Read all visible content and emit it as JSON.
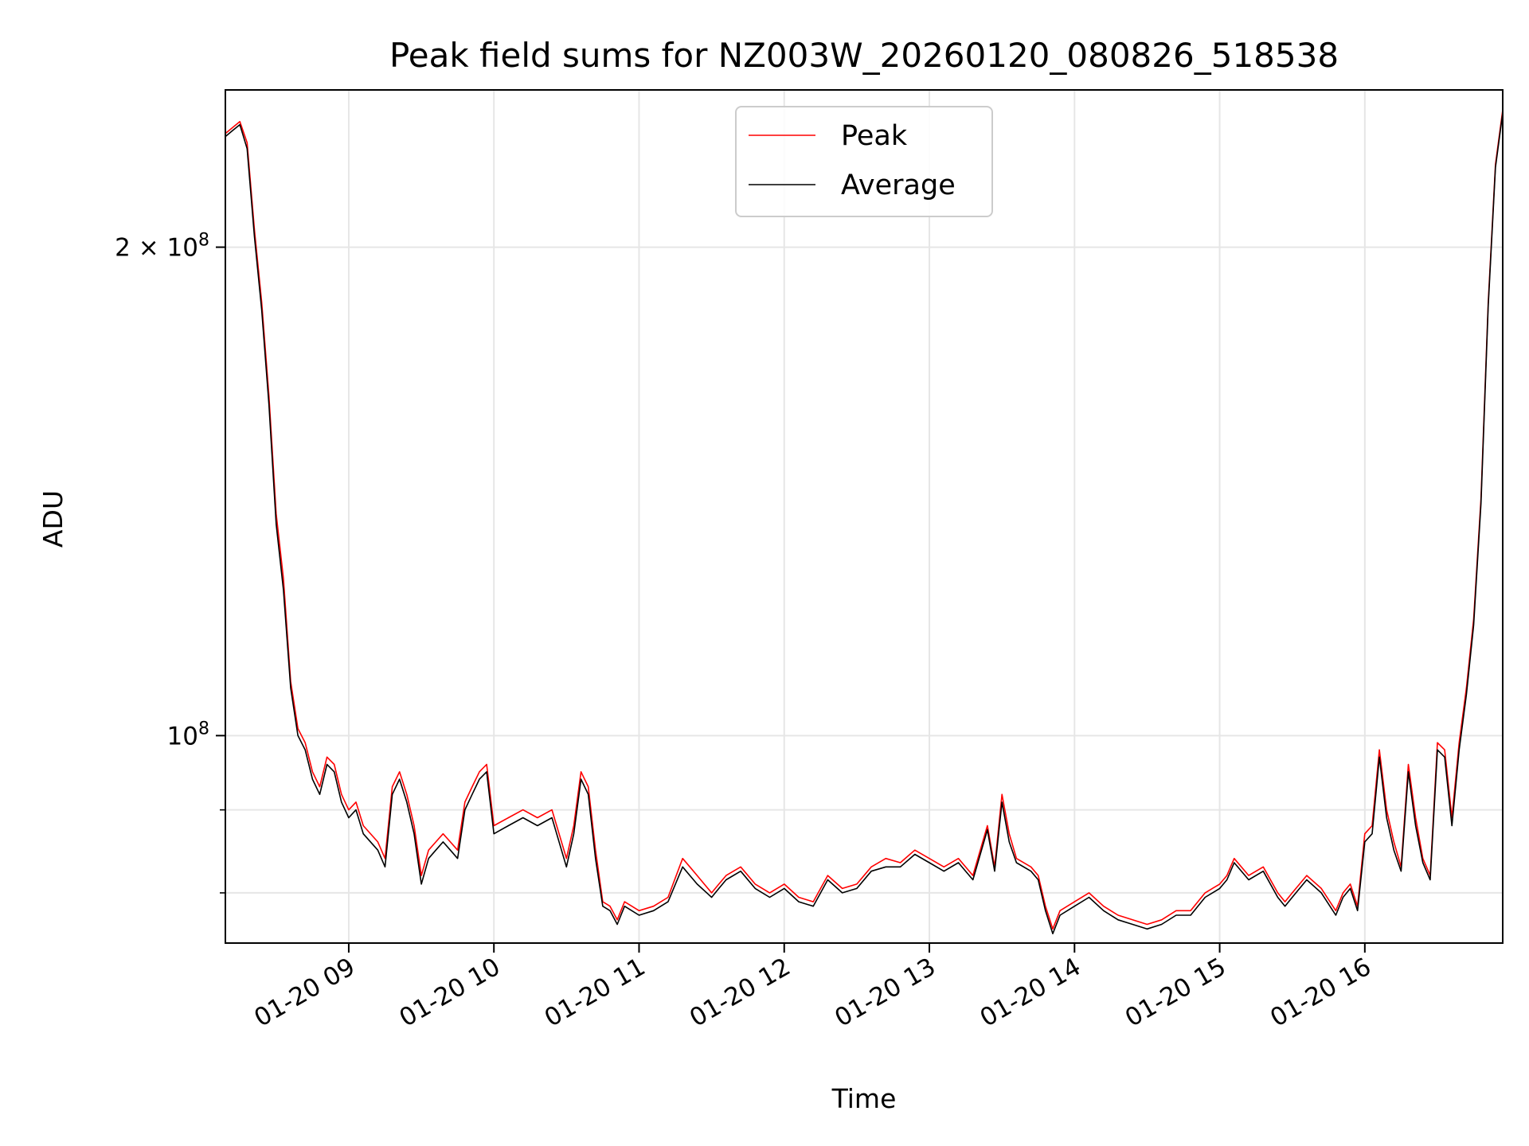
{
  "chart_data": {
    "type": "line",
    "title": "Peak field sums for NZ003W_20260120_080826_518538",
    "xlabel": "Time",
    "ylabel": "ADU",
    "y_scale": "log",
    "xlim": [
      8.15,
      16.95
    ],
    "ylim": [
      74500000,
      250000000
    ],
    "grid": true,
    "legend_position": "top-center",
    "x_ticks": [
      {
        "value": 9,
        "label": "01-20 09"
      },
      {
        "value": 10,
        "label": "01-20 10"
      },
      {
        "value": 11,
        "label": "01-20 11"
      },
      {
        "value": 12,
        "label": "01-20 12"
      },
      {
        "value": 13,
        "label": "01-20 13"
      },
      {
        "value": 14,
        "label": "01-20 14"
      },
      {
        "value": 15,
        "label": "01-20 15"
      },
      {
        "value": 16,
        "label": "01-20 16"
      }
    ],
    "y_ticks_major": [
      {
        "value": 100000000,
        "base": "10",
        "exp": "8"
      },
      {
        "value": 200000000,
        "mant": "2 × ",
        "base": "10",
        "exp": "8"
      }
    ],
    "y_ticks_minor": [
      80000000,
      90000000
    ],
    "series": [
      {
        "name": "Peak",
        "color": "#ff0000",
        "points": [
          [
            8.15,
            235000000
          ],
          [
            8.2,
            237000000
          ],
          [
            8.25,
            239000000
          ],
          [
            8.3,
            232000000
          ],
          [
            8.35,
            205000000
          ],
          [
            8.4,
            185000000
          ],
          [
            8.45,
            162000000
          ],
          [
            8.5,
            137000000
          ],
          [
            8.55,
            125000000
          ],
          [
            8.6,
            108000000
          ],
          [
            8.65,
            101000000
          ],
          [
            8.7,
            99000000
          ],
          [
            8.75,
            95000000
          ],
          [
            8.8,
            93000000
          ],
          [
            8.85,
            97000000
          ],
          [
            8.9,
            96000000
          ],
          [
            8.95,
            92000000
          ],
          [
            9.0,
            90000000
          ],
          [
            9.05,
            91000000
          ],
          [
            9.1,
            88000000
          ],
          [
            9.2,
            86000000
          ],
          [
            9.25,
            84000000
          ],
          [
            9.3,
            93000000
          ],
          [
            9.35,
            95000000
          ],
          [
            9.4,
            92000000
          ],
          [
            9.45,
            88000000
          ],
          [
            9.5,
            82000000
          ],
          [
            9.55,
            85000000
          ],
          [
            9.6,
            86000000
          ],
          [
            9.65,
            87000000
          ],
          [
            9.7,
            86000000
          ],
          [
            9.75,
            85000000
          ],
          [
            9.8,
            91000000
          ],
          [
            9.85,
            93000000
          ],
          [
            9.9,
            95000000
          ],
          [
            9.95,
            96000000
          ],
          [
            10.0,
            88000000
          ],
          [
            10.1,
            89000000
          ],
          [
            10.2,
            90000000
          ],
          [
            10.3,
            89000000
          ],
          [
            10.4,
            90000000
          ],
          [
            10.5,
            84000000
          ],
          [
            10.55,
            88000000
          ],
          [
            10.6,
            95000000
          ],
          [
            10.65,
            93000000
          ],
          [
            10.7,
            85000000
          ],
          [
            10.75,
            79000000
          ],
          [
            10.8,
            78500000
          ],
          [
            10.85,
            77000000
          ],
          [
            10.9,
            79000000
          ],
          [
            11.0,
            78000000
          ],
          [
            11.1,
            78500000
          ],
          [
            11.2,
            79500000
          ],
          [
            11.3,
            84000000
          ],
          [
            11.35,
            83000000
          ],
          [
            11.4,
            82000000
          ],
          [
            11.5,
            80000000
          ],
          [
            11.55,
            81000000
          ],
          [
            11.6,
            82000000
          ],
          [
            11.7,
            83000000
          ],
          [
            11.8,
            81000000
          ],
          [
            11.9,
            80000000
          ],
          [
            12.0,
            81000000
          ],
          [
            12.1,
            79500000
          ],
          [
            12.2,
            79000000
          ],
          [
            12.3,
            82000000
          ],
          [
            12.4,
            80500000
          ],
          [
            12.5,
            81000000
          ],
          [
            12.6,
            83000000
          ],
          [
            12.7,
            84000000
          ],
          [
            12.8,
            83500000
          ],
          [
            12.9,
            85000000
          ],
          [
            13.0,
            84000000
          ],
          [
            13.1,
            83000000
          ],
          [
            13.2,
            84000000
          ],
          [
            13.3,
            82000000
          ],
          [
            13.4,
            88000000
          ],
          [
            13.45,
            83000000
          ],
          [
            13.5,
            92000000
          ],
          [
            13.55,
            87000000
          ],
          [
            13.6,
            84000000
          ],
          [
            13.7,
            83000000
          ],
          [
            13.75,
            82000000
          ],
          [
            13.8,
            78500000
          ],
          [
            13.85,
            76000000
          ],
          [
            13.9,
            78000000
          ],
          [
            14.0,
            79000000
          ],
          [
            14.1,
            80000000
          ],
          [
            14.2,
            78500000
          ],
          [
            14.3,
            77500000
          ],
          [
            14.4,
            77000000
          ],
          [
            14.5,
            76500000
          ],
          [
            14.6,
            77000000
          ],
          [
            14.7,
            78000000
          ],
          [
            14.8,
            78000000
          ],
          [
            14.9,
            80000000
          ],
          [
            15.0,
            81000000
          ],
          [
            15.05,
            82000000
          ],
          [
            15.1,
            84000000
          ],
          [
            15.2,
            82000000
          ],
          [
            15.3,
            83000000
          ],
          [
            15.4,
            80000000
          ],
          [
            15.45,
            79000000
          ],
          [
            15.5,
            80000000
          ],
          [
            15.6,
            82000000
          ],
          [
            15.7,
            80500000
          ],
          [
            15.8,
            78000000
          ],
          [
            15.85,
            80000000
          ],
          [
            15.9,
            81000000
          ],
          [
            15.95,
            78500000
          ],
          [
            16.0,
            87000000
          ],
          [
            16.05,
            88000000
          ],
          [
            16.1,
            98000000
          ],
          [
            16.15,
            90000000
          ],
          [
            16.2,
            86000000
          ],
          [
            16.25,
            83000000
          ],
          [
            16.3,
            96000000
          ],
          [
            16.35,
            89000000
          ],
          [
            16.4,
            84000000
          ],
          [
            16.45,
            82000000
          ],
          [
            16.5,
            99000000
          ],
          [
            16.55,
            98000000
          ],
          [
            16.6,
            89000000
          ],
          [
            16.65,
            99000000
          ],
          [
            16.7,
            107000000
          ],
          [
            16.75,
            118000000
          ],
          [
            16.8,
            140000000
          ],
          [
            16.85,
            185000000
          ],
          [
            16.9,
            225000000
          ],
          [
            16.95,
            243000000
          ]
        ]
      },
      {
        "name": "Average",
        "color": "#000000",
        "points": [
          [
            8.15,
            234000000
          ],
          [
            8.2,
            236000000
          ],
          [
            8.25,
            238000000
          ],
          [
            8.3,
            230000000
          ],
          [
            8.35,
            203000000
          ],
          [
            8.4,
            183000000
          ],
          [
            8.45,
            160000000
          ],
          [
            8.5,
            135000000
          ],
          [
            8.55,
            123000000
          ],
          [
            8.6,
            107000000
          ],
          [
            8.65,
            100000000
          ],
          [
            8.7,
            98000000
          ],
          [
            8.75,
            94000000
          ],
          [
            8.8,
            92000000
          ],
          [
            8.85,
            96000000
          ],
          [
            8.9,
            95000000
          ],
          [
            8.95,
            91000000
          ],
          [
            9.0,
            89000000
          ],
          [
            9.05,
            90000000
          ],
          [
            9.1,
            87000000
          ],
          [
            9.2,
            85000000
          ],
          [
            9.25,
            83000000
          ],
          [
            9.3,
            92000000
          ],
          [
            9.35,
            94000000
          ],
          [
            9.4,
            91000000
          ],
          [
            9.45,
            87000000
          ],
          [
            9.5,
            81000000
          ],
          [
            9.55,
            84000000
          ],
          [
            9.6,
            85000000
          ],
          [
            9.65,
            86000000
          ],
          [
            9.7,
            85000000
          ],
          [
            9.75,
            84000000
          ],
          [
            9.8,
            90000000
          ],
          [
            9.85,
            92000000
          ],
          [
            9.9,
            94000000
          ],
          [
            9.95,
            95000000
          ],
          [
            10.0,
            87000000
          ],
          [
            10.1,
            88000000
          ],
          [
            10.2,
            89000000
          ],
          [
            10.3,
            88000000
          ],
          [
            10.4,
            89000000
          ],
          [
            10.5,
            83000000
          ],
          [
            10.55,
            87000000
          ],
          [
            10.6,
            94000000
          ],
          [
            10.65,
            92000000
          ],
          [
            10.7,
            84000000
          ],
          [
            10.75,
            78500000
          ],
          [
            10.8,
            78000000
          ],
          [
            10.85,
            76500000
          ],
          [
            10.9,
            78500000
          ],
          [
            11.0,
            77500000
          ],
          [
            11.1,
            78000000
          ],
          [
            11.2,
            79000000
          ],
          [
            11.3,
            83000000
          ],
          [
            11.35,
            82000000
          ],
          [
            11.4,
            81000000
          ],
          [
            11.5,
            79500000
          ],
          [
            11.55,
            80500000
          ],
          [
            11.6,
            81500000
          ],
          [
            11.7,
            82500000
          ],
          [
            11.8,
            80500000
          ],
          [
            11.9,
            79500000
          ],
          [
            12.0,
            80500000
          ],
          [
            12.1,
            79000000
          ],
          [
            12.2,
            78500000
          ],
          [
            12.3,
            81500000
          ],
          [
            12.4,
            80000000
          ],
          [
            12.5,
            80500000
          ],
          [
            12.6,
            82500000
          ],
          [
            12.7,
            83000000
          ],
          [
            12.8,
            83000000
          ],
          [
            12.9,
            84500000
          ],
          [
            13.0,
            83500000
          ],
          [
            13.1,
            82500000
          ],
          [
            13.2,
            83500000
          ],
          [
            13.3,
            81500000
          ],
          [
            13.4,
            87500000
          ],
          [
            13.45,
            82500000
          ],
          [
            13.5,
            91000000
          ],
          [
            13.55,
            86000000
          ],
          [
            13.6,
            83500000
          ],
          [
            13.7,
            82500000
          ],
          [
            13.75,
            81500000
          ],
          [
            13.8,
            78000000
          ],
          [
            13.85,
            75500000
          ],
          [
            13.9,
            77500000
          ],
          [
            14.0,
            78500000
          ],
          [
            14.1,
            79500000
          ],
          [
            14.2,
            78000000
          ],
          [
            14.3,
            77000000
          ],
          [
            14.4,
            76500000
          ],
          [
            14.5,
            76000000
          ],
          [
            14.6,
            76500000
          ],
          [
            14.7,
            77500000
          ],
          [
            14.8,
            77500000
          ],
          [
            14.9,
            79500000
          ],
          [
            15.0,
            80500000
          ],
          [
            15.05,
            81500000
          ],
          [
            15.1,
            83500000
          ],
          [
            15.2,
            81500000
          ],
          [
            15.3,
            82500000
          ],
          [
            15.4,
            79500000
          ],
          [
            15.45,
            78500000
          ],
          [
            15.5,
            79500000
          ],
          [
            15.6,
            81500000
          ],
          [
            15.7,
            80000000
          ],
          [
            15.8,
            77500000
          ],
          [
            15.85,
            79500000
          ],
          [
            15.9,
            80500000
          ],
          [
            15.95,
            78000000
          ],
          [
            16.0,
            86000000
          ],
          [
            16.05,
            87000000
          ],
          [
            16.1,
            97000000
          ],
          [
            16.15,
            89000000
          ],
          [
            16.2,
            85000000
          ],
          [
            16.25,
            82500000
          ],
          [
            16.3,
            95000000
          ],
          [
            16.35,
            88000000
          ],
          [
            16.4,
            83500000
          ],
          [
            16.45,
            81500000
          ],
          [
            16.5,
            98000000
          ],
          [
            16.55,
            97000000
          ],
          [
            16.6,
            88000000
          ],
          [
            16.65,
            98000000
          ],
          [
            16.7,
            106000000
          ],
          [
            16.75,
            117000000
          ],
          [
            16.8,
            139000000
          ],
          [
            16.85,
            184000000
          ],
          [
            16.9,
            224000000
          ],
          [
            16.95,
            242000000
          ]
        ]
      }
    ]
  }
}
